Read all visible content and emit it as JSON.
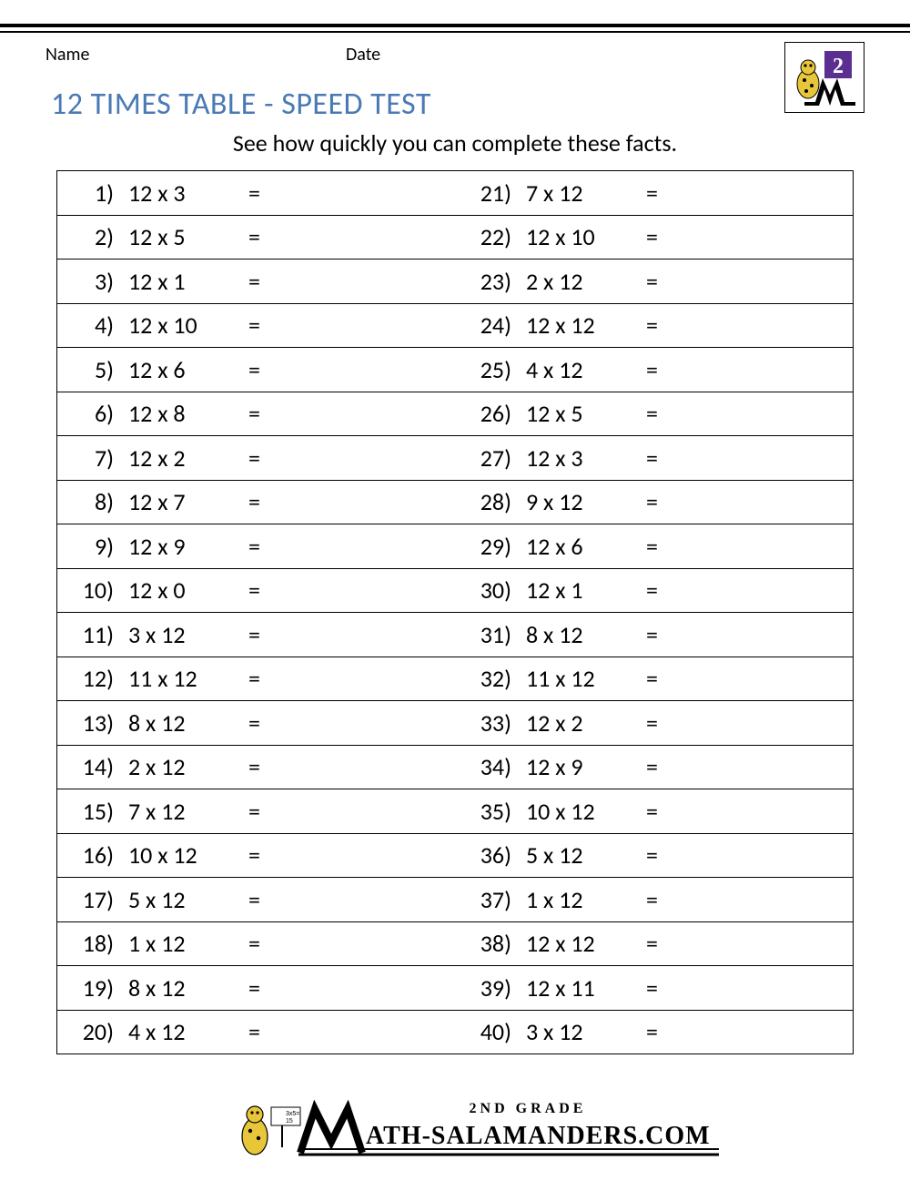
{
  "header": {
    "name_label": "Name",
    "date_label": "Date",
    "logo_number": "2"
  },
  "title": "12 TIMES TABLE - SPEED TEST",
  "subtitle": "See how quickly you can complete these facts.",
  "colors": {
    "title_color": "#4a7ab3",
    "text_color": "#000000",
    "border_color": "#000000",
    "background": "#ffffff",
    "logo_purple": "#5b2e91",
    "logo_yellow": "#e8c63a"
  },
  "table": {
    "equals_symbol": "=",
    "left_column": [
      {
        "n": "1)",
        "expr": "12 x 3"
      },
      {
        "n": "2)",
        "expr": "12 x 5"
      },
      {
        "n": "3)",
        "expr": "12 x 1"
      },
      {
        "n": "4)",
        "expr": "12 x 10"
      },
      {
        "n": "5)",
        "expr": "12 x 6"
      },
      {
        "n": "6)",
        "expr": "12 x 8"
      },
      {
        "n": "7)",
        "expr": "12 x 2"
      },
      {
        "n": "8)",
        "expr": "12 x 7"
      },
      {
        "n": "9)",
        "expr": "12 x 9"
      },
      {
        "n": "10)",
        "expr": "12 x 0"
      },
      {
        "n": "11)",
        "expr": "3 x 12"
      },
      {
        "n": "12)",
        "expr": "11 x 12"
      },
      {
        "n": "13)",
        "expr": "8 x 12"
      },
      {
        "n": "14)",
        "expr": "2 x 12"
      },
      {
        "n": "15)",
        "expr": "7 x 12"
      },
      {
        "n": "16)",
        "expr": "10 x 12"
      },
      {
        "n": "17)",
        "expr": "5 x 12"
      },
      {
        "n": "18)",
        "expr": "1 x 12"
      },
      {
        "n": "19)",
        "expr": "8 x 12"
      },
      {
        "n": "20)",
        "expr": "4 x 12"
      }
    ],
    "right_column": [
      {
        "n": "21)",
        "expr": "7 x 12"
      },
      {
        "n": "22)",
        "expr": "12 x 10"
      },
      {
        "n": "23)",
        "expr": "2 x 12"
      },
      {
        "n": "24)",
        "expr": "12 x 12"
      },
      {
        "n": "25)",
        "expr": "4 x 12"
      },
      {
        "n": "26)",
        "expr": "12 x 5"
      },
      {
        "n": "27)",
        "expr": "12 x 3"
      },
      {
        "n": "28)",
        "expr": "9 x 12"
      },
      {
        "n": "29)",
        "expr": "12 x 6"
      },
      {
        "n": "30)",
        "expr": "12 x 1"
      },
      {
        "n": "31)",
        "expr": "8 x 12"
      },
      {
        "n": "32)",
        "expr": "11 x 12"
      },
      {
        "n": "33)",
        "expr": "12 x 2"
      },
      {
        "n": "34)",
        "expr": "12 x 9"
      },
      {
        "n": "35)",
        "expr": "10 x 12"
      },
      {
        "n": "36)",
        "expr": "5 x 12"
      },
      {
        "n": "37)",
        "expr": "1 x 12"
      },
      {
        "n": "38)",
        "expr": "12 x 12"
      },
      {
        "n": "39)",
        "expr": "12 x 11"
      },
      {
        "n": "40)",
        "expr": "3 x 12"
      }
    ]
  },
  "footer": {
    "grade_text": "2ND GRADE",
    "site_text": "ATH-SALAMANDERS.COM"
  }
}
